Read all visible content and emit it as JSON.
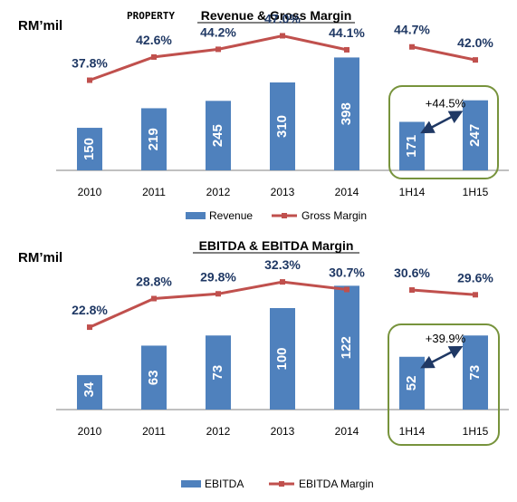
{
  "tag": "PROPERTY",
  "colors": {
    "bar": "#4f81bd",
    "line": "#c0504d",
    "box": "#77933c",
    "pct": "#1f3864",
    "axis": "#808080"
  },
  "chart_data": [
    {
      "type": "bar",
      "title": "Revenue & Gross Margin",
      "ylabel": "RM’mil",
      "categories": [
        "2010",
        "2011",
        "2012",
        "2013",
        "2014",
        "1H14",
        "1H15"
      ],
      "series": [
        {
          "name": "Revenue",
          "type": "bar",
          "values": [
            150,
            219,
            245,
            310,
            398,
            171,
            247
          ]
        },
        {
          "name": "Gross Margin",
          "type": "line",
          "values": [
            37.8,
            42.6,
            44.2,
            47.0,
            44.1,
            44.7,
            42.0
          ],
          "labels": [
            "37.8%",
            "42.6%",
            "44.2%",
            "47.0%",
            "44.1%",
            "44.7%",
            "42.0%"
          ]
        }
      ],
      "highlight": {
        "categories": [
          "1H14",
          "1H15"
        ],
        "label": "+44.5%"
      },
      "legend_position": "bottom"
    },
    {
      "type": "bar",
      "title": "EBITDA & EBITDA Margin",
      "ylabel": "RM’mil",
      "categories": [
        "2010",
        "2011",
        "2012",
        "2013",
        "2014",
        "1H14",
        "1H15"
      ],
      "series": [
        {
          "name": "EBITDA",
          "type": "bar",
          "values": [
            34,
            63,
            73,
            100,
            122,
            52,
            73
          ]
        },
        {
          "name": "EBITDA Margin",
          "type": "line",
          "values": [
            22.8,
            28.8,
            29.8,
            32.3,
            30.7,
            30.6,
            29.6
          ],
          "labels": [
            "22.8%",
            "28.8%",
            "29.8%",
            "32.3%",
            "30.7%",
            "30.6%",
            "29.6%"
          ]
        }
      ],
      "highlight": {
        "categories": [
          "1H14",
          "1H15"
        ],
        "label": "+39.9%"
      },
      "legend_position": "bottom"
    }
  ]
}
